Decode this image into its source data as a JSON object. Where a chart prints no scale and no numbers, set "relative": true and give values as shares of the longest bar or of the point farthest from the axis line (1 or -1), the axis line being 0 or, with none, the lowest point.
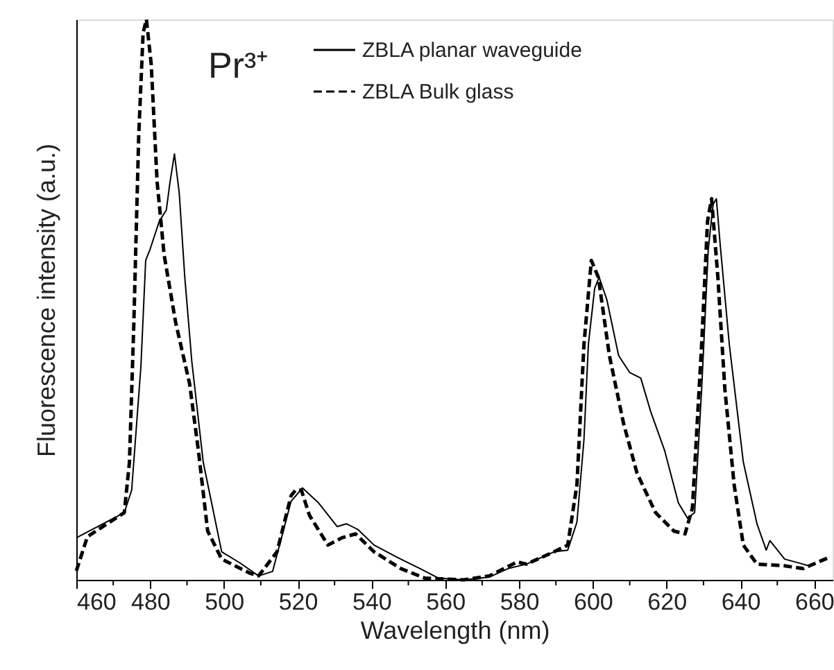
{
  "chart_data": {
    "type": "line",
    "relative": true,
    "xlabel": "Wavelength (nm)",
    "ylabel": "Fluorescence intensity (a.u.)",
    "annotations": [
      "Pr³⁺"
    ],
    "xlim": [
      460,
      665
    ],
    "xticks": [
      460,
      {
        "value": 470,
        "label": null
      },
      480,
      {
        "value": 490,
        "label": null
      },
      500,
      {
        "value": 510,
        "label": null
      },
      520,
      {
        "value": 530,
        "label": null
      },
      540,
      {
        "value": 550,
        "label": null
      },
      560,
      {
        "value": 570,
        "label": null
      },
      580,
      {
        "value": 590,
        "label": null
      },
      600,
      {
        "value": 610,
        "label": null
      },
      620,
      {
        "value": 630,
        "label": null
      },
      640,
      {
        "value": 650,
        "label": null
      },
      660
    ],
    "legend": "top right",
    "marker": "none",
    "series": [
      {
        "name": "ZBLA planar waveguide",
        "color": "#000000",
        "line_style": "solid",
        "x": [
          460,
          473,
          475,
          477.5,
          478.8,
          480,
          482.5,
          484.4,
          485.4,
          486.6,
          487.9,
          489.4,
          491.3,
          494.4,
          496.9,
          499.4,
          504.4,
          509.4,
          513.2,
          518.2,
          521.3,
          525.7,
          530.7,
          533.2,
          536.3,
          540.7,
          547,
          553.2,
          558.2,
          565,
          572,
          577,
          582,
          589.5,
          593.2,
          595.7,
          597.6,
          598.8,
          600.5,
          601.7,
          603.8,
          607,
          610,
          613,
          615.7,
          619.5,
          623.2,
          625.7,
          627.6,
          629.5,
          631.3,
          632.6,
          633.5,
          634.5,
          637,
          640.8,
          644.5,
          647,
          648,
          652,
          657,
          658.5
        ],
        "values": [
          0.075,
          0.12,
          0.16,
          0.38,
          0.57,
          0.59,
          0.64,
          0.66,
          0.71,
          0.76,
          0.69,
          0.54,
          0.39,
          0.21,
          0.13,
          0.05,
          0.03,
          0.007,
          0.015,
          0.14,
          0.164,
          0.137,
          0.095,
          0.1,
          0.09,
          0.062,
          0.04,
          0.02,
          0.003,
          0.0,
          0.005,
          0.02,
          0.028,
          0.05,
          0.053,
          0.103,
          0.25,
          0.42,
          0.52,
          0.54,
          0.5,
          0.4,
          0.37,
          0.36,
          0.3,
          0.23,
          0.137,
          0.11,
          0.12,
          0.34,
          0.59,
          0.67,
          0.68,
          0.6,
          0.42,
          0.21,
          0.1,
          0.053,
          0.07,
          0.037,
          0.028,
          0.025
        ]
      },
      {
        "name": "ZBLA Bulk glass",
        "color": "#000000",
        "line_style": "dashed",
        "x": [
          460,
          463,
          473,
          474.4,
          475.6,
          476.9,
          478.1,
          479,
          480.3,
          481.9,
          483.8,
          486.9,
          490.7,
          493.1,
          495.6,
          499.4,
          507,
          509.4,
          514.4,
          518.2,
          519.4,
          521,
          523.2,
          528.2,
          532,
          535.7,
          540.7,
          548,
          554.5,
          565,
          572,
          579.5,
          582,
          589.5,
          593.2,
          595.7,
          597.6,
          599.6,
          601.5,
          604.5,
          608.3,
          612,
          617,
          622,
          625,
          627,
          629.5,
          631.1,
          632.2,
          633.9,
          635.8,
          638.3,
          640.8,
          644.5,
          652,
          657,
          664
        ],
        "values": [
          0.016,
          0.077,
          0.12,
          0.21,
          0.46,
          0.79,
          0.976,
          1.0,
          0.92,
          0.71,
          0.58,
          0.46,
          0.35,
          0.23,
          0.087,
          0.037,
          0.012,
          0.007,
          0.05,
          0.15,
          0.16,
          0.16,
          0.115,
          0.062,
          0.075,
          0.082,
          0.05,
          0.02,
          0.003,
          0.0,
          0.007,
          0.032,
          0.028,
          0.05,
          0.062,
          0.17,
          0.42,
          0.57,
          0.54,
          0.4,
          0.28,
          0.19,
          0.12,
          0.087,
          0.082,
          0.128,
          0.42,
          0.64,
          0.68,
          0.54,
          0.34,
          0.17,
          0.062,
          0.028,
          0.025,
          0.02,
          0.04
        ]
      }
    ]
  }
}
